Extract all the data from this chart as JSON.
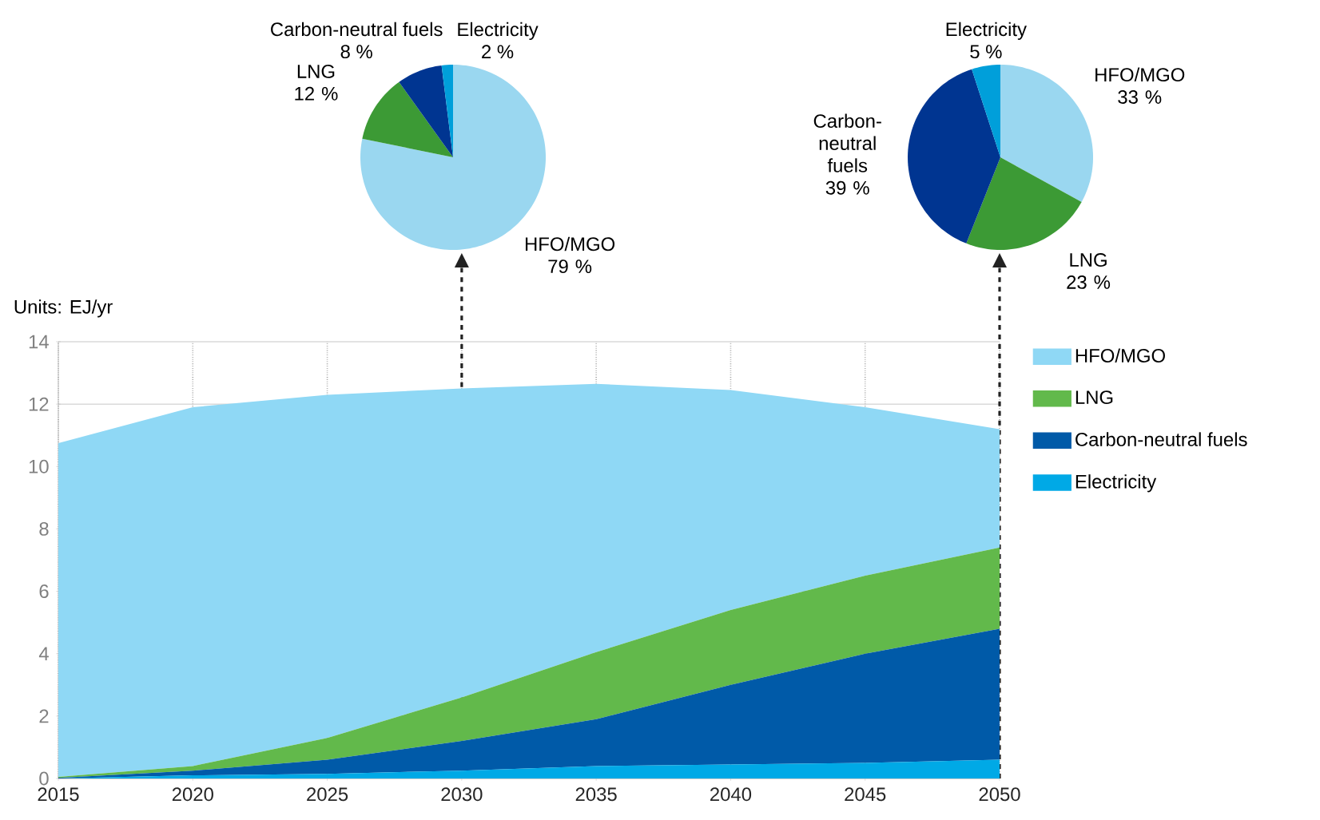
{
  "chart_data": [
    {
      "type": "pie",
      "categories": [
        "HFO/MGO",
        "LNG",
        "Carbon-neutral fuels",
        "Electricity"
      ],
      "values": [
        79,
        12,
        8,
        2
      ],
      "colors": [
        "#9ad7f0",
        "#3c9a35",
        "#003591",
        "#009fda"
      ],
      "value_labels": [
        "79 %",
        "12 %",
        "8 %",
        "2 %"
      ]
    },
    {
      "type": "pie",
      "categories": [
        "HFO/MGO",
        "LNG",
        "Carbon-neutral fuels",
        "Electricity"
      ],
      "values": [
        33,
        23,
        39,
        5
      ],
      "colors": [
        "#9ad7f0",
        "#3c9a35",
        "#003591",
        "#009fda"
      ],
      "value_labels": [
        "33 %",
        "23 %",
        "39 %",
        "5 %"
      ]
    },
    {
      "type": "area",
      "ylabel": "Units: EJ/yr",
      "stacked": true,
      "x": [
        2015,
        2020,
        2025,
        2030,
        2035,
        2040,
        2045,
        2050
      ],
      "series": [
        {
          "name": "Electricity",
          "color": "#00a9e6",
          "values": [
            0,
            0.1,
            0.15,
            0.25,
            0.4,
            0.45,
            0.5,
            0.6
          ]
        },
        {
          "name": "Carbon-neutral fuels",
          "color": "#005aa8",
          "values": [
            0.02,
            0.15,
            0.45,
            0.95,
            1.5,
            2.55,
            3.5,
            4.2
          ]
        },
        {
          "name": "LNG",
          "color": "#62b94b",
          "values": [
            0.03,
            0.15,
            0.7,
            1.4,
            2.15,
            2.4,
            2.5,
            2.6
          ]
        },
        {
          "name": "HFO/MGO",
          "color": "#8fd8f5",
          "values": [
            10.7,
            11.5,
            11.0,
            9.9,
            8.6,
            7.05,
            5.4,
            3.8
          ]
        }
      ],
      "xlim": [
        2015,
        2050
      ],
      "ylim": [
        0,
        14
      ],
      "xticks": [
        2015,
        2020,
        2025,
        2030,
        2035,
        2040,
        2045,
        2050
      ],
      "yticks": [
        0,
        2,
        4,
        6,
        8,
        10,
        12,
        14
      ],
      "grid": true,
      "legend": "right",
      "ref_lines": [
        {
          "axis": "x",
          "value": 2030,
          "color": "#222222",
          "line_style": "dashed"
        },
        {
          "axis": "x",
          "value": 2050,
          "color": "#222222",
          "line_style": "dashed"
        }
      ]
    }
  ]
}
